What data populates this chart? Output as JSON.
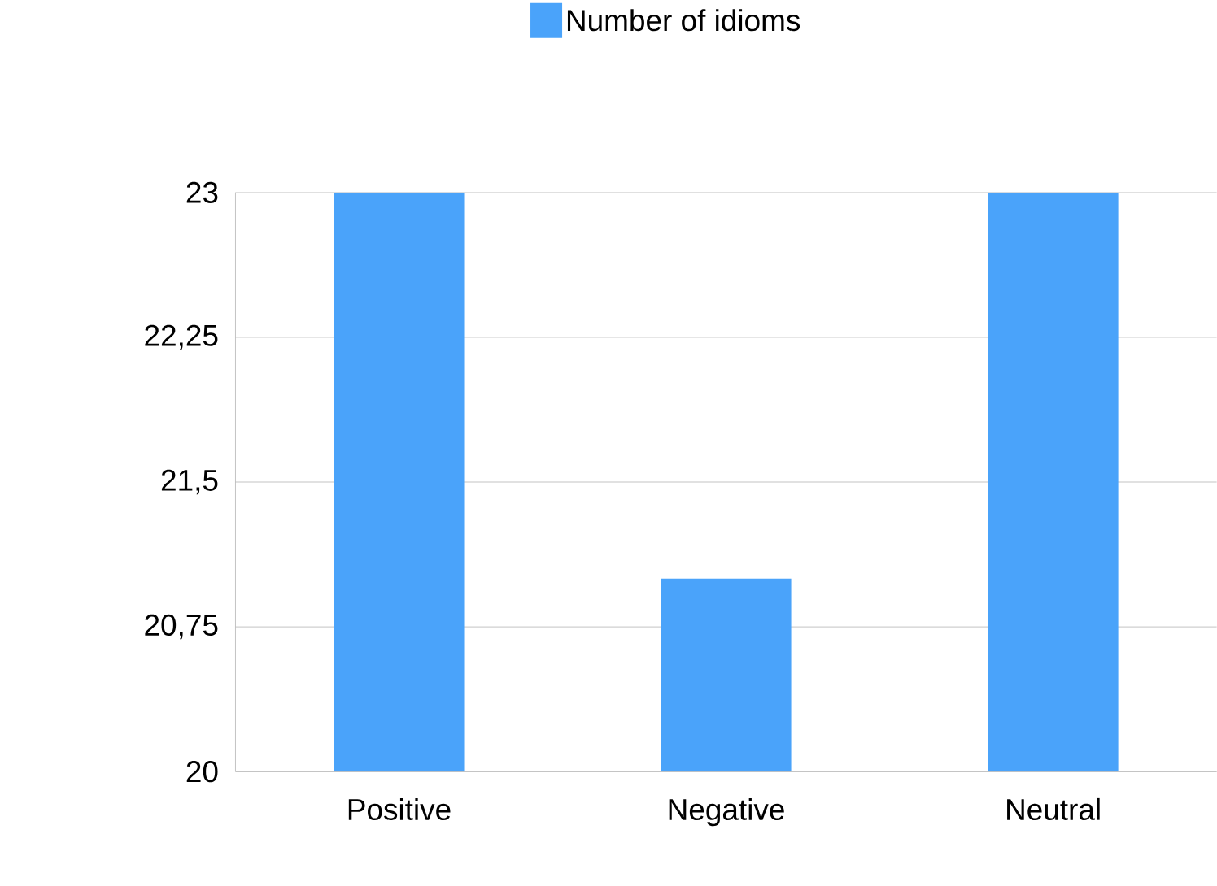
{
  "chart_data": {
    "type": "bar",
    "categories": [
      "Positive",
      "Negative",
      "Neutral"
    ],
    "series": [
      {
        "name": "Number of idioms",
        "color": "#4aa3fa",
        "values": [
          23,
          21,
          23
        ]
      }
    ],
    "ylim": [
      20,
      23
    ],
    "yticks": [
      20,
      {
        "value": 20.75,
        "label": "20,75"
      },
      {
        "value": 21.5,
        "label": "21,5"
      },
      {
        "value": 22.25,
        "label": "22,25"
      },
      23
    ],
    "grid": "y",
    "legend": "top"
  }
}
